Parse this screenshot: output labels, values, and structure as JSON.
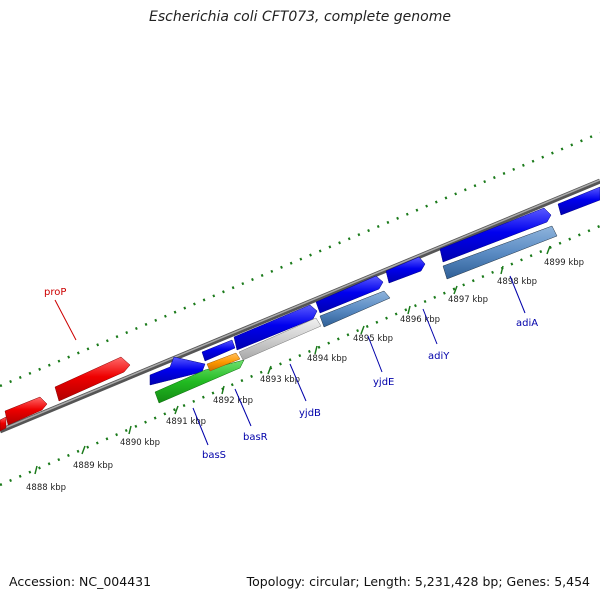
{
  "title": "Escherichia coli CFT073, complete genome",
  "footer": {
    "accession": "Accession: NC_004431",
    "topology": "Topology: circular; Length: 5,231,428 bp; Genes: 5,454"
  },
  "colors": {
    "forward_gene": "#0000ee",
    "reverse_gene": "#ee0000",
    "backbone": "#777777",
    "tick": "#1a7a1a",
    "label_blue": "#0000aa",
    "label_red": "#cc0000"
  },
  "kbp_ticks": [
    "4888 kbp",
    "4889 kbp",
    "4890 kbp",
    "4891 kbp",
    "4892 kbp",
    "4893 kbp",
    "4894 kbp",
    "4895 kbp",
    "4896 kbp",
    "4897 kbp",
    "4898 kbp",
    "4899 kbp"
  ],
  "gene_labels": {
    "proP": "proP",
    "basS": "basS",
    "basR": "basR",
    "yjdB": "yjdB",
    "yjdE": "yjdE",
    "adiY": "adiY",
    "adiA": "adiA"
  }
}
